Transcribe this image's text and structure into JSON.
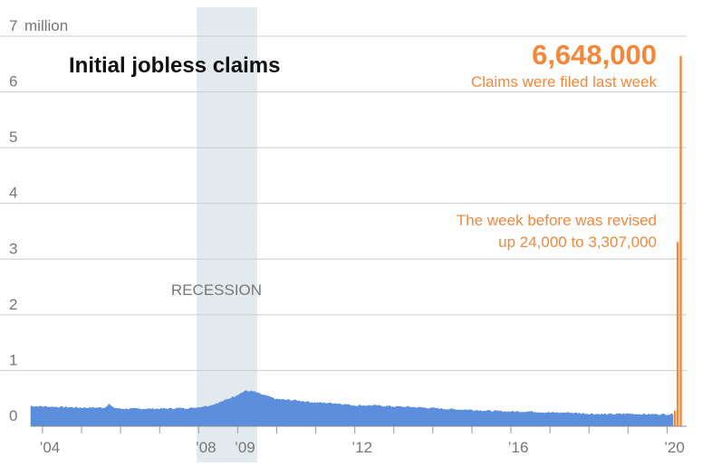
{
  "chart_data": {
    "type": "area",
    "title": "Initial jobless claims",
    "ylabel": "",
    "xlabel": "",
    "y_unit": "million",
    "ylim": [
      0,
      7
    ],
    "y_ticks": [
      0,
      1,
      2,
      3,
      4,
      5,
      6,
      7
    ],
    "y_tick_labels": [
      "0",
      "1",
      "2",
      "3",
      "4",
      "5",
      "6",
      "7"
    ],
    "xlim": [
      2003.7,
      2020.5
    ],
    "x_ticks": [
      2004,
      2008,
      2009,
      2012,
      2016,
      2020
    ],
    "x_tick_labels": [
      "’04",
      "’08",
      "’09",
      "’12",
      "’16",
      "’20"
    ],
    "grid": true,
    "colors": {
      "series": "#5b8fdd",
      "highlight": "#f4873b",
      "recession": "#e3eaee",
      "grid": "#cccccc"
    },
    "recession": {
      "label": "RECESSION",
      "start": 2007.95,
      "end": 2009.5
    },
    "series": [
      {
        "values_million": [
          [
            2003.7,
            0.36
          ],
          [
            2004.0,
            0.35
          ],
          [
            2004.5,
            0.34
          ],
          [
            2005.0,
            0.33
          ],
          [
            2005.6,
            0.33
          ],
          [
            2005.7,
            0.4
          ],
          [
            2005.8,
            0.33
          ],
          [
            2006.0,
            0.31
          ],
          [
            2006.5,
            0.31
          ],
          [
            2007.0,
            0.31
          ],
          [
            2007.5,
            0.32
          ],
          [
            2007.8,
            0.32
          ],
          [
            2008.0,
            0.34
          ],
          [
            2008.3,
            0.37
          ],
          [
            2008.6,
            0.44
          ],
          [
            2008.9,
            0.53
          ],
          [
            2009.2,
            0.63
          ],
          [
            2009.4,
            0.62
          ],
          [
            2009.6,
            0.57
          ],
          [
            2010.0,
            0.48
          ],
          [
            2010.5,
            0.46
          ],
          [
            2011.0,
            0.42
          ],
          [
            2011.5,
            0.41
          ],
          [
            2012.0,
            0.37
          ],
          [
            2012.5,
            0.37
          ],
          [
            2013.0,
            0.35
          ],
          [
            2013.5,
            0.34
          ],
          [
            2014.0,
            0.32
          ],
          [
            2014.5,
            0.3
          ],
          [
            2015.0,
            0.29
          ],
          [
            2015.5,
            0.27
          ],
          [
            2016.0,
            0.26
          ],
          [
            2016.5,
            0.26
          ],
          [
            2017.0,
            0.24
          ],
          [
            2017.5,
            0.24
          ],
          [
            2018.0,
            0.22
          ],
          [
            2018.5,
            0.21
          ],
          [
            2019.0,
            0.22
          ],
          [
            2019.5,
            0.21
          ],
          [
            2019.9,
            0.21
          ],
          [
            2020.15,
            0.21
          ]
        ]
      }
    ],
    "highlight_bars": [
      {
        "x": 2020.2,
        "value": 0.28
      },
      {
        "x": 2020.27,
        "value": 3.307
      },
      {
        "x": 2020.35,
        "value": 6.648
      }
    ],
    "annotations": {
      "headline_value": "6,648,000",
      "headline_caption": "Claims were filed last week",
      "revision_line1": "The week before was revised",
      "revision_line2": "up 24,000 to 3,307,000"
    }
  }
}
